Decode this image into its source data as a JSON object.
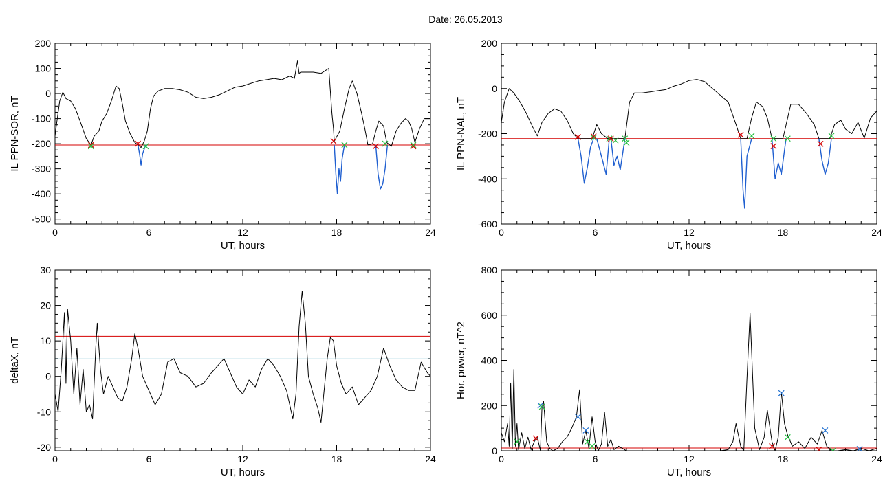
{
  "title": "Date:  26.05.2013",
  "colors": {
    "trace": "#000000",
    "event": "#1f5fd0",
    "threshold_red": "#d40000",
    "threshold_blue": "#1a8fb0",
    "marker_red": "#d40000",
    "marker_green": "#22c040",
    "marker_blue": "#1f6fd0"
  },
  "chart_data": [
    {
      "type": "line",
      "xlabel": "UT, hours",
      "ylabel": "IL PPN-SOR, nT",
      "xlim": [
        0,
        24
      ],
      "ylim": [
        -520,
        200
      ],
      "xticks": [
        0,
        6,
        12,
        18,
        24
      ],
      "yticks": [
        200,
        100,
        0,
        -100,
        -200,
        -300,
        -400,
        -500
      ],
      "grid": false,
      "thresholds": [
        {
          "y": -205,
          "color": "red"
        }
      ],
      "series": [
        {
          "style": "black",
          "x": [
            0,
            0.1,
            0.3,
            0.5,
            0.7,
            1.0,
            1.3,
            1.6,
            2.0,
            2.3,
            2.5,
            2.8,
            3.0,
            3.3,
            3.6,
            3.9,
            4.1,
            4.3,
            4.5,
            4.8,
            5.1,
            5.3,
            5.5,
            5.7,
            5.9,
            6.1,
            6.3,
            6.6,
            7.0,
            7.5,
            8.0,
            8.5,
            9.0,
            9.5,
            10.0,
            10.5,
            11.0,
            11.5,
            12.0,
            12.5,
            13.0,
            13.5,
            14.0,
            14.5,
            15.0,
            15.3,
            15.5,
            15.6,
            15.7,
            16.0,
            16.5,
            17.0,
            17.5,
            17.7,
            17.8,
            17.85,
            18.2,
            18.5,
            18.8,
            19.0,
            19.3,
            19.6,
            19.8,
            20.0,
            20.3,
            20.5,
            20.7,
            21.0,
            21.2,
            21.5,
            21.8,
            22.1,
            22.4,
            22.6,
            22.8,
            23.0,
            23.3,
            23.6,
            24.0
          ],
          "y": [
            -170,
            -120,
            -30,
            5,
            -20,
            -30,
            -60,
            -110,
            -180,
            -205,
            -170,
            -150,
            -110,
            -80,
            -30,
            30,
            20,
            -40,
            -110,
            -160,
            -195,
            -205,
            -215,
            -190,
            -150,
            -60,
            -10,
            10,
            20,
            20,
            15,
            5,
            -15,
            -20,
            -15,
            -5,
            10,
            25,
            30,
            40,
            50,
            55,
            60,
            55,
            70,
            60,
            130,
            80,
            85,
            85,
            85,
            80,
            100,
            -80,
            -140,
            -190,
            -150,
            -60,
            20,
            50,
            0,
            -80,
            -140,
            -205,
            -200,
            -150,
            -110,
            -130,
            -195,
            -210,
            -150,
            -120,
            -100,
            -110,
            -140,
            -195,
            -140,
            -100,
            -100
          ]
        },
        {
          "style": "blue",
          "x": [
            5.3,
            5.4,
            5.5,
            5.6,
            5.8
          ],
          "y": [
            -205,
            -240,
            -285,
            -240,
            -205
          ]
        },
        {
          "style": "blue",
          "x": [
            17.85,
            17.95,
            18.05,
            18.15,
            18.25,
            18.35,
            18.5
          ],
          "y": [
            -205,
            -320,
            -400,
            -300,
            -350,
            -260,
            -205
          ]
        },
        {
          "style": "blue",
          "x": [
            20.5,
            20.65,
            20.8,
            20.95,
            21.1,
            21.25
          ],
          "y": [
            -205,
            -320,
            -380,
            -360,
            -300,
            -205
          ]
        }
      ],
      "markers": [
        {
          "x": 2.3,
          "y": -205,
          "color": "red"
        },
        {
          "x": 2.3,
          "y": -210,
          "color": "green"
        },
        {
          "x": 5.3,
          "y": -200,
          "color": "red"
        },
        {
          "x": 5.8,
          "y": -210,
          "color": "green"
        },
        {
          "x": 17.8,
          "y": -190,
          "color": "red"
        },
        {
          "x": 18.5,
          "y": -205,
          "color": "green"
        },
        {
          "x": 20.5,
          "y": -210,
          "color": "red"
        },
        {
          "x": 21.1,
          "y": -200,
          "color": "green"
        },
        {
          "x": 22.9,
          "y": -210,
          "color": "red"
        },
        {
          "x": 22.9,
          "y": -205,
          "color": "green"
        }
      ]
    },
    {
      "type": "line",
      "xlabel": "UT, hours",
      "ylabel": "IL PPN-NAL, nT",
      "xlim": [
        0,
        24
      ],
      "ylim": [
        -600,
        200
      ],
      "xticks": [
        0,
        6,
        12,
        18,
        24
      ],
      "yticks": [
        200,
        0,
        -200,
        -400,
        -600
      ],
      "grid": false,
      "thresholds": [
        {
          "y": -222,
          "color": "red"
        }
      ],
      "series": [
        {
          "style": "black",
          "x": [
            0,
            0.2,
            0.5,
            0.8,
            1.2,
            1.6,
            2.0,
            2.3,
            2.6,
            3.0,
            3.4,
            3.8,
            4.2,
            4.6,
            4.9,
            5.2,
            5.5,
            5.8,
            6.1,
            6.4,
            6.8,
            7.0,
            7.3,
            7.6,
            7.9,
            8.2,
            8.5,
            9.0,
            9.5,
            10.0,
            10.5,
            11.0,
            11.5,
            12.0,
            12.5,
            13.0,
            13.5,
            14.0,
            14.5,
            15.0,
            15.3,
            15.5,
            15.7,
            16.0,
            16.3,
            16.7,
            17.0,
            17.3,
            17.5,
            17.7,
            18.0,
            18.5,
            19.0,
            19.5,
            20.0,
            20.3,
            20.6,
            21.0,
            21.3,
            21.7,
            22.0,
            22.4,
            22.8,
            23.2,
            23.6,
            24.0
          ],
          "y": [
            -150,
            -60,
            0,
            -20,
            -60,
            -110,
            -170,
            -210,
            -150,
            -110,
            -90,
            -100,
            -140,
            -200,
            -222,
            -222,
            -222,
            -222,
            -160,
            -200,
            -222,
            -222,
            -222,
            -222,
            -222,
            -60,
            -20,
            -20,
            -15,
            -10,
            -5,
            10,
            20,
            35,
            40,
            30,
            0,
            -30,
            -60,
            -160,
            -222,
            -222,
            -222,
            -130,
            -60,
            -80,
            -130,
            -222,
            -222,
            -222,
            -222,
            -70,
            -70,
            -110,
            -160,
            -222,
            -222,
            -222,
            -160,
            -140,
            -180,
            -200,
            -150,
            -220,
            -130,
            -100
          ]
        },
        {
          "style": "blue",
          "x": [
            4.9,
            5.1,
            5.3,
            5.5,
            5.7,
            5.9
          ],
          "y": [
            -222,
            -300,
            -420,
            -350,
            -260,
            -222
          ]
        },
        {
          "style": "blue",
          "x": [
            6.1,
            6.4,
            6.7,
            6.9
          ],
          "y": [
            -222,
            -300,
            -380,
            -222
          ]
        },
        {
          "style": "blue",
          "x": [
            7.0,
            7.2,
            7.4,
            7.6,
            7.9
          ],
          "y": [
            -222,
            -340,
            -300,
            -360,
            -222
          ]
        },
        {
          "style": "blue",
          "x": [
            15.3,
            15.45,
            15.55,
            15.7,
            16.0
          ],
          "y": [
            -222,
            -450,
            -530,
            -300,
            -222
          ]
        },
        {
          "style": "blue",
          "x": [
            17.3,
            17.5,
            17.7,
            17.9,
            18.2
          ],
          "y": [
            -222,
            -400,
            -330,
            -380,
            -222
          ]
        },
        {
          "style": "blue",
          "x": [
            20.3,
            20.5,
            20.7,
            20.9,
            21.1
          ],
          "y": [
            -222,
            -320,
            -380,
            -330,
            -222
          ]
        }
      ],
      "markers": [
        {
          "x": 4.9,
          "y": -215,
          "color": "red"
        },
        {
          "x": 5.9,
          "y": -218,
          "color": "green"
        },
        {
          "x": 5.9,
          "y": -212,
          "color": "red"
        },
        {
          "x": 6.9,
          "y": -222,
          "color": "green"
        },
        {
          "x": 7.0,
          "y": -222,
          "color": "red"
        },
        {
          "x": 7.3,
          "y": -230,
          "color": "green"
        },
        {
          "x": 7.9,
          "y": -222,
          "color": "green"
        },
        {
          "x": 8.0,
          "y": -240,
          "color": "green"
        },
        {
          "x": 15.3,
          "y": -205,
          "color": "red"
        },
        {
          "x": 16.0,
          "y": -210,
          "color": "green"
        },
        {
          "x": 17.4,
          "y": -255,
          "color": "red"
        },
        {
          "x": 17.4,
          "y": -222,
          "color": "green"
        },
        {
          "x": 18.3,
          "y": -222,
          "color": "green"
        },
        {
          "x": 20.4,
          "y": -245,
          "color": "red"
        },
        {
          "x": 21.1,
          "y": -210,
          "color": "green"
        }
      ]
    },
    {
      "type": "line",
      "xlabel": "UT, hours",
      "ylabel": "deltaX, nT",
      "xlim": [
        0,
        24
      ],
      "ylim": [
        -21,
        30
      ],
      "xticks": [
        0,
        6,
        12,
        18,
        24
      ],
      "yticks": [
        30,
        20,
        10,
        0,
        -10,
        -20
      ],
      "grid": false,
      "thresholds": [
        {
          "y": 11.3,
          "color": "red"
        },
        {
          "y": 4.9,
          "color": "blue"
        }
      ],
      "series": [
        {
          "style": "black",
          "x": [
            0,
            0.2,
            0.4,
            0.6,
            0.7,
            0.8,
            1.0,
            1.2,
            1.4,
            1.6,
            1.8,
            2.0,
            2.2,
            2.4,
            2.6,
            2.7,
            2.9,
            3.1,
            3.4,
            3.7,
            4.0,
            4.3,
            4.6,
            4.9,
            5.1,
            5.3,
            5.6,
            6.0,
            6.4,
            6.8,
            7.2,
            7.6,
            8.0,
            8.5,
            9.0,
            9.5,
            10.0,
            10.4,
            10.8,
            11.2,
            11.6,
            12.0,
            12.4,
            12.8,
            13.2,
            13.6,
            14.0,
            14.4,
            14.8,
            15.0,
            15.2,
            15.4,
            15.6,
            15.8,
            16.0,
            16.2,
            16.5,
            16.8,
            17.0,
            17.2,
            17.4,
            17.6,
            17.8,
            18.0,
            18.3,
            18.6,
            19.0,
            19.4,
            19.8,
            20.2,
            20.6,
            21.0,
            21.4,
            21.8,
            22.2,
            22.6,
            23.0,
            23.4,
            23.8,
            24.0
          ],
          "y": [
            -5,
            -10,
            2,
            18,
            -2,
            19,
            10,
            -5,
            8,
            -8,
            2,
            -10,
            -8,
            -12,
            8,
            15,
            2,
            -5,
            0,
            -3,
            -6,
            -7,
            -3,
            5,
            12,
            8,
            0,
            -4,
            -8,
            -5,
            4,
            5,
            1,
            0,
            -3,
            -2,
            1,
            3,
            5,
            1,
            -3,
            -5,
            -1,
            -3,
            2,
            5,
            3,
            0,
            -4,
            -8,
            -12,
            -5,
            14,
            24,
            15,
            0,
            -5,
            -9,
            -13,
            -4,
            5,
            11,
            10,
            3,
            -2,
            -5,
            -3,
            -8,
            -6,
            -4,
            0,
            8,
            3,
            -1,
            -3,
            -4,
            -4,
            4,
            1,
            0
          ]
        }
      ],
      "markers": []
    },
    {
      "type": "line",
      "xlabel": "UT, hours",
      "ylabel": "Hor. power, nT^2",
      "xlim": [
        0,
        24
      ],
      "ylim": [
        0,
        800
      ],
      "xticks": [
        0,
        6,
        12,
        18,
        24
      ],
      "yticks": [
        800,
        600,
        400,
        200,
        0
      ],
      "grid": false,
      "thresholds": [
        {
          "y": 12,
          "color": "red"
        }
      ],
      "series": [
        {
          "style": "black",
          "x": [
            0,
            0.2,
            0.4,
            0.5,
            0.6,
            0.7,
            0.8,
            0.9,
            1.0,
            1.1,
            1.3,
            1.5,
            1.7,
            1.9,
            2.1,
            2.3,
            2.5,
            2.6,
            2.7,
            2.9,
            3.1,
            3.3,
            3.6,
            3.9,
            4.2,
            4.5,
            4.8,
            5.0,
            5.2,
            5.4,
            5.6,
            5.8,
            6.0,
            6.2,
            6.4,
            6.6,
            6.8,
            7.0,
            7.2,
            7.5,
            8.0,
            9.0,
            10.0,
            11.0,
            12.0,
            13.0,
            14.0,
            14.5,
            14.8,
            15.0,
            15.3,
            15.5,
            15.7,
            15.9,
            16.2,
            16.5,
            16.8,
            17.0,
            17.3,
            17.5,
            17.7,
            17.9,
            18.1,
            18.3,
            18.6,
            19.0,
            19.4,
            19.8,
            20.2,
            20.5,
            20.8,
            21.1,
            21.5,
            22.0,
            22.5,
            23.0,
            23.5,
            24.0
          ],
          "y": [
            80,
            40,
            120,
            20,
            300,
            10,
            360,
            20,
            120,
            5,
            80,
            10,
            60,
            5,
            40,
            60,
            0,
            190,
            220,
            40,
            10,
            0,
            10,
            40,
            60,
            100,
            150,
            270,
            30,
            90,
            10,
            150,
            40,
            0,
            30,
            170,
            20,
            50,
            5,
            20,
            0,
            0,
            0,
            0,
            0,
            0,
            0,
            5,
            40,
            120,
            20,
            0,
            320,
            610,
            100,
            5,
            60,
            180,
            40,
            0,
            60,
            260,
            120,
            70,
            20,
            40,
            10,
            60,
            30,
            90,
            20,
            0,
            0,
            5,
            0,
            10,
            0,
            10
          ]
        }
      ],
      "markers": [
        {
          "x": 1.0,
          "y": 40,
          "color": "green"
        },
        {
          "x": 2.2,
          "y": 55,
          "color": "red"
        },
        {
          "x": 2.5,
          "y": 200,
          "color": "blue"
        },
        {
          "x": 2.6,
          "y": 195,
          "color": "green"
        },
        {
          "x": 4.9,
          "y": 150,
          "color": "blue"
        },
        {
          "x": 5.4,
          "y": 90,
          "color": "blue"
        },
        {
          "x": 5.5,
          "y": 40,
          "color": "green"
        },
        {
          "x": 5.8,
          "y": 20,
          "color": "green"
        },
        {
          "x": 17.3,
          "y": 20,
          "color": "red"
        },
        {
          "x": 17.9,
          "y": 255,
          "color": "blue"
        },
        {
          "x": 18.3,
          "y": 60,
          "color": "green"
        },
        {
          "x": 20.3,
          "y": 5,
          "color": "red"
        },
        {
          "x": 20.7,
          "y": 90,
          "color": "blue"
        },
        {
          "x": 21.2,
          "y": 0,
          "color": "green"
        },
        {
          "x": 22.9,
          "y": 8,
          "color": "blue"
        }
      ]
    }
  ]
}
